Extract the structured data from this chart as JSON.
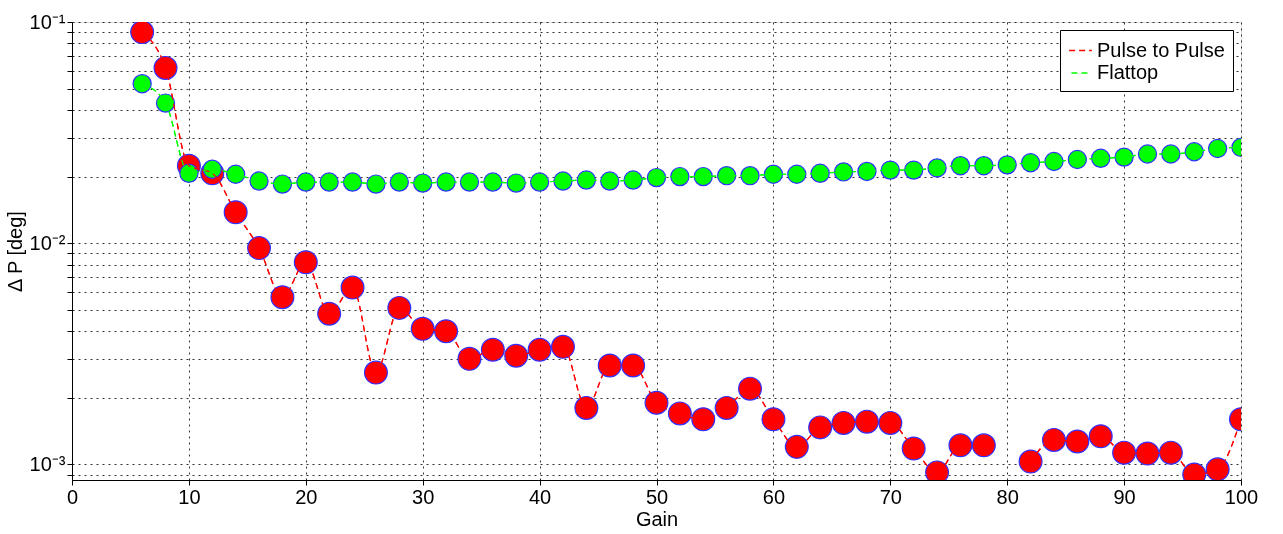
{
  "chart_data": {
    "type": "line",
    "xlabel": "Gain",
    "ylabel": "Δ P [deg]",
    "x": [
      6,
      8,
      10,
      12,
      14,
      16,
      18,
      20,
      22,
      24,
      26,
      28,
      30,
      32,
      34,
      36,
      38,
      40,
      42,
      44,
      46,
      48,
      50,
      52,
      54,
      56,
      58,
      60,
      62,
      64,
      66,
      68,
      70,
      72,
      74,
      76,
      78,
      80,
      82,
      84,
      86,
      88,
      90,
      92,
      94,
      96,
      98,
      100
    ],
    "series": [
      {
        "name": "Pulse to Pulse",
        "color": "#ff0000",
        "values": [
          0.09,
          0.062,
          0.0224,
          0.0207,
          0.0138,
          0.0095,
          0.0057,
          0.0082,
          0.0048,
          0.0063,
          0.0026,
          0.0051,
          0.0041,
          0.004,
          0.003,
          0.0033,
          0.0031,
          0.0033,
          0.0034,
          0.0018,
          0.0028,
          0.0028,
          0.0019,
          0.0017,
          0.0016,
          0.0018,
          0.0022,
          0.0016,
          0.0012,
          0.00147,
          0.00154,
          0.00156,
          0.00154,
          0.00118,
          0.00092,
          0.00122,
          0.00122,
          null,
          0.00103,
          0.00129,
          0.00127,
          0.00134,
          0.00113,
          0.00112,
          0.00113,
          0.0009,
          0.00095,
          0.0016
        ]
      },
      {
        "name": "Flattop",
        "color": "#00ff00",
        "values": [
          0.0526,
          0.043,
          0.0207,
          0.0216,
          0.0205,
          0.0191,
          0.0185,
          0.0189,
          0.0189,
          0.0189,
          0.0185,
          0.0189,
          0.0187,
          0.0189,
          0.0189,
          0.0189,
          0.0187,
          0.0189,
          0.0191,
          0.0193,
          0.0191,
          0.0193,
          0.0198,
          0.02,
          0.02,
          0.0202,
          0.0202,
          0.0205,
          0.0205,
          0.0207,
          0.021,
          0.0211,
          0.0214,
          0.0214,
          0.0219,
          0.0224,
          0.0224,
          0.0226,
          0.0231,
          0.0234,
          0.0239,
          0.0242,
          0.0245,
          0.0253,
          0.0253,
          0.0259,
          0.0268,
          0.0271
        ]
      }
    ],
    "log": true,
    "xlim": [
      0,
      100
    ],
    "ylim": [
      0.00085,
      0.1
    ],
    "xticks": [
      0,
      10,
      20,
      30,
      40,
      50,
      60,
      70,
      80,
      90,
      100
    ],
    "yticks": [
      {
        "value": 0.0009,
        "label": null
      },
      {
        "value": 0.001,
        "label": "10⁻³"
      },
      {
        "value": 0.002,
        "label": null
      },
      {
        "value": 0.003,
        "label": null
      },
      {
        "value": 0.004,
        "label": null
      },
      {
        "value": 0.005,
        "label": null
      },
      {
        "value": 0.006,
        "label": null
      },
      {
        "value": 0.007,
        "label": null
      },
      {
        "value": 0.008,
        "label": null
      },
      {
        "value": 0.009,
        "label": null
      },
      {
        "value": 0.01,
        "label": "10⁻²"
      },
      {
        "value": 0.02,
        "label": null
      },
      {
        "value": 0.03,
        "label": null
      },
      {
        "value": 0.04,
        "label": null
      },
      {
        "value": 0.05,
        "label": null
      },
      {
        "value": 0.06,
        "label": null
      },
      {
        "value": 0.07,
        "label": null
      },
      {
        "value": 0.08,
        "label": null
      },
      {
        "value": 0.09,
        "label": null
      },
      {
        "value": 0.1,
        "label": "10⁻¹"
      }
    ],
    "grid": true,
    "legend": "top right",
    "marker": "circle",
    "line_style": "dashed"
  }
}
